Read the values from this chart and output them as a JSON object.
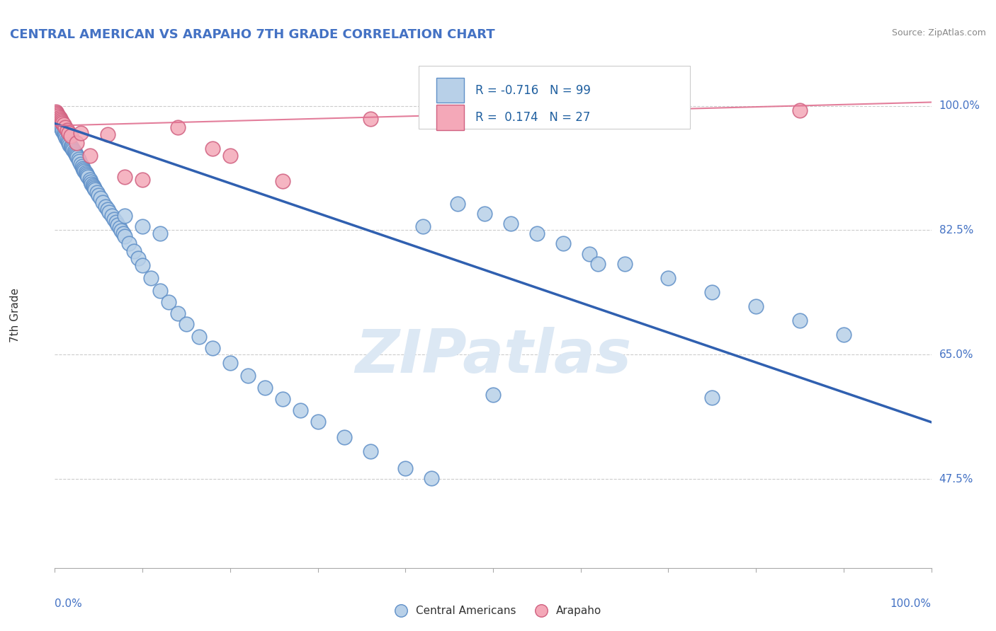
{
  "title": "CENTRAL AMERICAN VS ARAPAHO 7TH GRADE CORRELATION CHART",
  "source": "Source: ZipAtlas.com",
  "ylabel": "7th Grade",
  "ytick_labels": [
    "100.0%",
    "82.5%",
    "65.0%",
    "47.5%"
  ],
  "ytick_values": [
    1.0,
    0.825,
    0.65,
    0.475
  ],
  "legend_label1": "Central Americans",
  "legend_label2": "Arapaho",
  "R1": -0.716,
  "N1": 99,
  "R2": 0.174,
  "N2": 27,
  "color_blue": "#b8d0e8",
  "color_pink": "#f4a8b8",
  "edge_blue": "#6090c8",
  "edge_pink": "#d06080",
  "line_color_blue": "#3060b0",
  "line_color_pink": "#e07090",
  "watermark_color": "#dce8f4",
  "blue_line_x0": 0.0,
  "blue_line_x1": 1.0,
  "blue_line_y0": 0.975,
  "blue_line_y1": 0.555,
  "pink_line_x0": 0.0,
  "pink_line_x1": 1.0,
  "pink_line_y0": 0.972,
  "pink_line_y1": 1.005,
  "blue_x": [
    0.001,
    0.002,
    0.003,
    0.004,
    0.005,
    0.006,
    0.007,
    0.008,
    0.009,
    0.01,
    0.011,
    0.012,
    0.013,
    0.014,
    0.015,
    0.016,
    0.017,
    0.018,
    0.019,
    0.02,
    0.021,
    0.022,
    0.023,
    0.024,
    0.025,
    0.026,
    0.027,
    0.028,
    0.03,
    0.031,
    0.032,
    0.033,
    0.034,
    0.035,
    0.036,
    0.037,
    0.038,
    0.04,
    0.041,
    0.042,
    0.043,
    0.044,
    0.045,
    0.046,
    0.048,
    0.05,
    0.052,
    0.055,
    0.058,
    0.06,
    0.062,
    0.065,
    0.068,
    0.07,
    0.072,
    0.074,
    0.076,
    0.078,
    0.08,
    0.085,
    0.09,
    0.095,
    0.1,
    0.11,
    0.12,
    0.13,
    0.14,
    0.15,
    0.165,
    0.18,
    0.2,
    0.22,
    0.24,
    0.26,
    0.28,
    0.3,
    0.33,
    0.36,
    0.4,
    0.43,
    0.46,
    0.49,
    0.52,
    0.55,
    0.58,
    0.61,
    0.65,
    0.7,
    0.75,
    0.8,
    0.85,
    0.9,
    0.5,
    0.62,
    0.42,
    0.75,
    0.1,
    0.12,
    0.08
  ],
  "blue_y": [
    0.99,
    0.985,
    0.98,
    0.978,
    0.975,
    0.972,
    0.97,
    0.968,
    0.965,
    0.963,
    0.96,
    0.958,
    0.955,
    0.953,
    0.95,
    0.948,
    0.945,
    0.943,
    0.942,
    0.94,
    0.938,
    0.936,
    0.934,
    0.932,
    0.93,
    0.928,
    0.925,
    0.922,
    0.918,
    0.915,
    0.912,
    0.91,
    0.908,
    0.906,
    0.904,
    0.902,
    0.9,
    0.896,
    0.893,
    0.89,
    0.888,
    0.886,
    0.884,
    0.882,
    0.878,
    0.874,
    0.87,
    0.864,
    0.858,
    0.854,
    0.85,
    0.845,
    0.84,
    0.836,
    0.832,
    0.828,
    0.824,
    0.82,
    0.816,
    0.806,
    0.796,
    0.786,
    0.776,
    0.758,
    0.74,
    0.724,
    0.708,
    0.693,
    0.675,
    0.659,
    0.638,
    0.62,
    0.604,
    0.588,
    0.572,
    0.556,
    0.534,
    0.514,
    0.49,
    0.476,
    0.862,
    0.848,
    0.834,
    0.82,
    0.806,
    0.792,
    0.778,
    0.758,
    0.738,
    0.718,
    0.698,
    0.678,
    0.594,
    0.778,
    0.83,
    0.59,
    0.83,
    0.82,
    0.845
  ],
  "pink_x": [
    0.001,
    0.002,
    0.003,
    0.004,
    0.005,
    0.006,
    0.007,
    0.008,
    0.009,
    0.01,
    0.012,
    0.014,
    0.016,
    0.018,
    0.025,
    0.04,
    0.06,
    0.08,
    0.1,
    0.14,
    0.2,
    0.26,
    0.36,
    0.56,
    0.85,
    0.18,
    0.03
  ],
  "pink_y": [
    0.992,
    0.99,
    0.988,
    0.986,
    0.984,
    0.982,
    0.98,
    0.978,
    0.976,
    0.974,
    0.97,
    0.966,
    0.962,
    0.958,
    0.948,
    0.93,
    0.96,
    0.9,
    0.896,
    0.97,
    0.93,
    0.894,
    0.982,
    0.998,
    0.994,
    0.94,
    0.962
  ],
  "xmin": 0.0,
  "xmax": 1.0,
  "ymin": 0.35,
  "ymax": 1.06
}
